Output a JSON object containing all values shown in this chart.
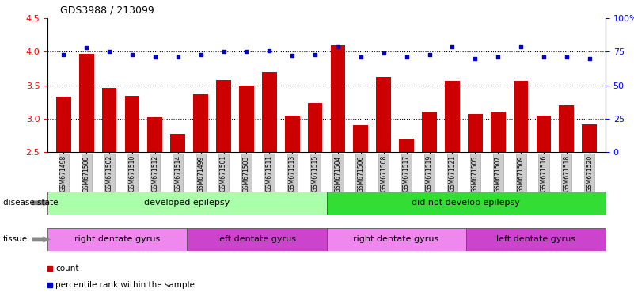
{
  "title": "GDS3988 / 213099",
  "samples": [
    "GSM671498",
    "GSM671500",
    "GSM671502",
    "GSM671510",
    "GSM671512",
    "GSM671514",
    "GSM671499",
    "GSM671501",
    "GSM671503",
    "GSM671511",
    "GSM671513",
    "GSM671515",
    "GSM671504",
    "GSM671506",
    "GSM671508",
    "GSM671517",
    "GSM671519",
    "GSM671521",
    "GSM671505",
    "GSM671507",
    "GSM671509",
    "GSM671516",
    "GSM671518",
    "GSM671520"
  ],
  "counts": [
    3.33,
    3.97,
    3.46,
    3.34,
    3.02,
    2.77,
    3.37,
    3.58,
    3.49,
    3.7,
    3.04,
    3.23,
    4.1,
    2.9,
    3.63,
    2.7,
    3.1,
    3.57,
    3.07,
    3.1,
    3.57,
    3.05,
    3.2,
    2.92
  ],
  "percentiles": [
    73,
    78,
    75,
    73,
    71,
    71,
    73,
    75,
    75,
    76,
    72,
    73,
    79,
    71,
    74,
    71,
    73,
    79,
    70,
    71,
    79,
    71,
    71,
    70
  ],
  "ylim_left": [
    2.5,
    4.5
  ],
  "ylim_right": [
    0,
    100
  ],
  "yticks_left": [
    2.5,
    3.0,
    3.5,
    4.0,
    4.5
  ],
  "yticks_right": [
    0,
    25,
    50,
    75,
    100
  ],
  "bar_color": "#cc0000",
  "dot_color": "#0000cc",
  "bar_width": 0.65,
  "disease_state_groups": [
    {
      "label": "developed epilepsy",
      "start": 0,
      "end": 12,
      "color": "#aaffaa"
    },
    {
      "label": "did not develop epilepsy",
      "start": 12,
      "end": 24,
      "color": "#33dd33"
    }
  ],
  "tissue_groups": [
    {
      "label": "right dentate gyrus",
      "start": 0,
      "end": 6,
      "color": "#ee88ee"
    },
    {
      "label": "left dentate gyrus",
      "start": 6,
      "end": 12,
      "color": "#cc44cc"
    },
    {
      "label": "right dentate gyrus",
      "start": 12,
      "end": 18,
      "color": "#ee88ee"
    },
    {
      "label": "left dentate gyrus",
      "start": 18,
      "end": 24,
      "color": "#cc44cc"
    }
  ],
  "disease_label": "disease state",
  "tissue_label": "tissue",
  "legend_count_label": "count",
  "legend_percentile_label": "percentile rank within the sample",
  "grid_lines": [
    3.0,
    3.5,
    4.0
  ],
  "tick_bg_color": "#cccccc",
  "tick_bg_edge_color": "#999999"
}
